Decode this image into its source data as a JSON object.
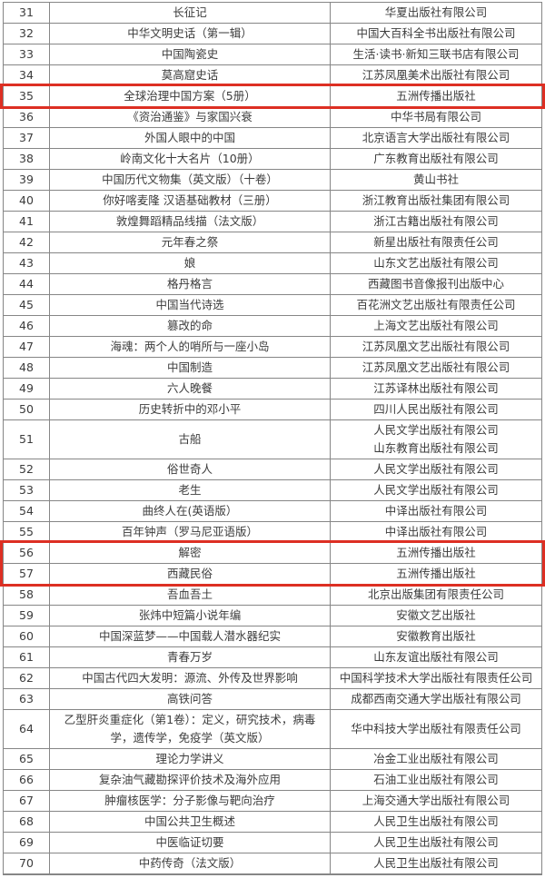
{
  "colors": {
    "highlight_border": "#dd2f23",
    "grid_border": "#868686",
    "text": "#3c3c3c",
    "background": "#ffffff"
  },
  "table": {
    "rows": [
      {
        "num": "31",
        "title": "长征记",
        "publishers": [
          "华夏出版社有限公司"
        ],
        "highlighted": false
      },
      {
        "num": "32",
        "title": "中华文明史话（第一辑）",
        "publishers": [
          "中国大百科全书出版社有限公司"
        ],
        "highlighted": false
      },
      {
        "num": "33",
        "title": "中国陶瓷史",
        "publishers": [
          "生活·读书·新知三联书店有限公司"
        ],
        "highlighted": false
      },
      {
        "num": "34",
        "title": "莫高窟史话",
        "publishers": [
          "江苏凤凰美术出版社有限公司"
        ],
        "highlighted": false
      },
      {
        "num": "35",
        "title": "全球治理中国方案（5册）",
        "publishers": [
          "五洲传播出版社"
        ],
        "highlighted": true
      },
      {
        "num": "36",
        "title": "《资治通鉴》与家国兴衰",
        "publishers": [
          "中华书局有限公司"
        ],
        "highlighted": false
      },
      {
        "num": "37",
        "title": "外国人眼中的中国",
        "publishers": [
          "北京语言大学出版社有限公司"
        ],
        "highlighted": false
      },
      {
        "num": "38",
        "title": "岭南文化十大名片（10册）",
        "publishers": [
          "广东教育出版社有限公司"
        ],
        "highlighted": false
      },
      {
        "num": "39",
        "title": "中国历代文物集（英文版）（十卷）",
        "publishers": [
          "黄山书社"
        ],
        "highlighted": false
      },
      {
        "num": "40",
        "title": "你好喀麦隆 汉语基础教材（三册）",
        "publishers": [
          "浙江教育出版社集团有限公司"
        ],
        "highlighted": false
      },
      {
        "num": "41",
        "title": "敦煌舞蹈精品线描（法文版）",
        "publishers": [
          "浙江古籍出版社有限公司"
        ],
        "highlighted": false
      },
      {
        "num": "42",
        "title": "元年春之祭",
        "publishers": [
          "新星出版社有限责任公司"
        ],
        "highlighted": false
      },
      {
        "num": "43",
        "title": "娘",
        "publishers": [
          "山东文艺出版社有限公司"
        ],
        "highlighted": false
      },
      {
        "num": "44",
        "title": "格丹格言",
        "publishers": [
          "西藏图书音像报刊出版中心"
        ],
        "highlighted": false
      },
      {
        "num": "45",
        "title": "中国当代诗选",
        "publishers": [
          "百花洲文艺出版社有限责任公司"
        ],
        "highlighted": false
      },
      {
        "num": "46",
        "title": "篡改的命",
        "publishers": [
          "上海文艺出版社有限公司"
        ],
        "highlighted": false
      },
      {
        "num": "47",
        "title": "海魂：两个人的哨所与一座小岛",
        "publishers": [
          "江苏凤凰文艺出版社有限公司"
        ],
        "highlighted": false
      },
      {
        "num": "48",
        "title": "中国制造",
        "publishers": [
          "江苏凤凰文艺出版社有限公司"
        ],
        "highlighted": false
      },
      {
        "num": "49",
        "title": "六人晚餐",
        "publishers": [
          "江苏译林出版社有限公司"
        ],
        "highlighted": false
      },
      {
        "num": "50",
        "title": "历史转折中的邓小平",
        "publishers": [
          "四川人民出版社有限公司"
        ],
        "highlighted": false
      },
      {
        "num": "51",
        "title": "古船",
        "publishers": [
          "人民文学出版社有限公司",
          "山东教育出版社有限公司"
        ],
        "highlighted": false
      },
      {
        "num": "52",
        "title": "俗世奇人",
        "publishers": [
          "人民文学出版社有限公司"
        ],
        "highlighted": false
      },
      {
        "num": "53",
        "title": "老生",
        "publishers": [
          "人民文学出版社有限公司"
        ],
        "highlighted": false
      },
      {
        "num": "54",
        "title": "曲终人在(英语版）",
        "publishers": [
          "中译出版社有限公司"
        ],
        "highlighted": false
      },
      {
        "num": "55",
        "title": "百年钟声（罗马尼亚语版）",
        "publishers": [
          "中译出版社有限公司"
        ],
        "highlighted": false
      },
      {
        "num": "56",
        "title": "解密",
        "publishers": [
          "五洲传播出版社"
        ],
        "highlighted": true
      },
      {
        "num": "57",
        "title": "西藏民俗",
        "publishers": [
          "五洲传播出版社"
        ],
        "highlighted": true
      },
      {
        "num": "58",
        "title": "吾血吾土",
        "publishers": [
          "北京出版集团有限责任公司"
        ],
        "highlighted": false
      },
      {
        "num": "59",
        "title": "张炜中短篇小说年编",
        "publishers": [
          "安徽文艺出版社"
        ],
        "highlighted": false
      },
      {
        "num": "60",
        "title": "中国深蓝梦——中国载人潜水器纪实",
        "publishers": [
          "安徽教育出版社"
        ],
        "highlighted": false
      },
      {
        "num": "61",
        "title": "青春万岁",
        "publishers": [
          "山东友谊出版社有限公司"
        ],
        "highlighted": false
      },
      {
        "num": "62",
        "title": "中国古代四大发明：源流、外传及世界影响",
        "publishers": [
          "中国科学技术大学出版社有限责任公司"
        ],
        "highlighted": false
      },
      {
        "num": "63",
        "title": "高铁问答",
        "publishers": [
          "成都西南交通大学出版社有限公司"
        ],
        "highlighted": false
      },
      {
        "num": "64",
        "title": "乙型肝炎重症化（第1卷）：定义，研究技术，病毒学，遗传学，免疫学（英文版）",
        "publishers": [
          "华中科技大学出版社有限责任公司"
        ],
        "highlighted": false
      },
      {
        "num": "65",
        "title": "理论力学讲义",
        "publishers": [
          "冶金工业出版社有限公司"
        ],
        "highlighted": false
      },
      {
        "num": "66",
        "title": "复杂油气藏勘探评价技术及海外应用",
        "publishers": [
          "石油工业出版社有限公司"
        ],
        "highlighted": false
      },
      {
        "num": "67",
        "title": "肿瘤核医学：分子影像与靶向治疗",
        "publishers": [
          "上海交通大学出版社有限公司"
        ],
        "highlighted": false
      },
      {
        "num": "68",
        "title": "中国公共卫生概述",
        "publishers": [
          "人民卫生出版社有限公司"
        ],
        "highlighted": false
      },
      {
        "num": "69",
        "title": "中医临证切要",
        "publishers": [
          "人民卫生出版社有限公司"
        ],
        "highlighted": false
      },
      {
        "num": "70",
        "title": "中药传奇（法文版）",
        "publishers": [
          "人民卫生出版社有限公司"
        ],
        "highlighted": false
      }
    ]
  }
}
